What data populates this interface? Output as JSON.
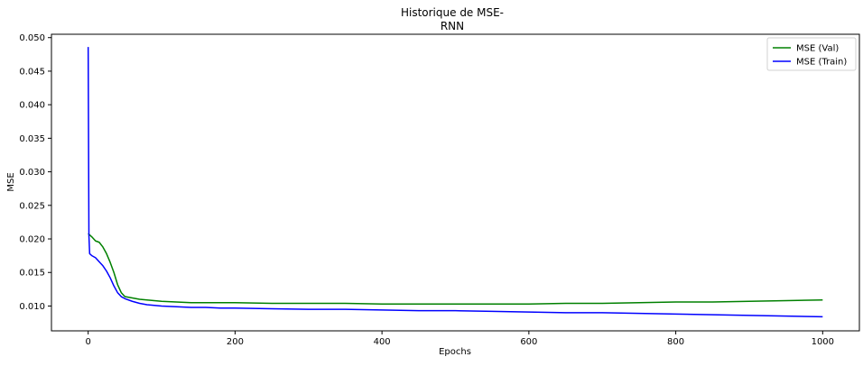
{
  "chart_data": {
    "type": "line",
    "title": "Historique de MSE-\nRNN",
    "xlabel": "Epochs",
    "ylabel": "MSE",
    "xlim": [
      -50,
      1050
    ],
    "ylim": [
      0.0063,
      0.0505
    ],
    "xticks": [
      0,
      200,
      400,
      600,
      800,
      1000
    ],
    "yticks": [
      0.01,
      0.015,
      0.02,
      0.025,
      0.03,
      0.035,
      0.04,
      0.045,
      0.05
    ],
    "ytick_labels": [
      "0.010",
      "0.015",
      "0.020",
      "0.025",
      "0.030",
      "0.035",
      "0.040",
      "0.045",
      "0.050"
    ],
    "grid": false,
    "legend": "top-right",
    "series": [
      {
        "name": "MSE (Val)",
        "color": "#008000",
        "x": [
          0,
          5,
          10,
          15,
          20,
          25,
          30,
          35,
          40,
          45,
          50,
          60,
          70,
          80,
          90,
          100,
          120,
          140,
          160,
          180,
          200,
          250,
          300,
          350,
          400,
          450,
          500,
          550,
          600,
          650,
          700,
          750,
          800,
          850,
          900,
          950,
          1000
        ],
        "y": [
          0.0208,
          0.0203,
          0.0197,
          0.0195,
          0.0188,
          0.0178,
          0.0165,
          0.015,
          0.0132,
          0.012,
          0.0114,
          0.0112,
          0.011,
          0.0109,
          0.0108,
          0.0107,
          0.0106,
          0.0105,
          0.0105,
          0.0105,
          0.0105,
          0.0104,
          0.0104,
          0.0104,
          0.0103,
          0.0103,
          0.0103,
          0.0103,
          0.0103,
          0.0104,
          0.0104,
          0.0105,
          0.0106,
          0.0106,
          0.0107,
          0.0108,
          0.0109
        ]
      },
      {
        "name": "MSE (Train)",
        "color": "#0000ff",
        "x": [
          0,
          1,
          2,
          5,
          10,
          15,
          20,
          25,
          30,
          35,
          40,
          45,
          50,
          60,
          70,
          80,
          90,
          100,
          120,
          140,
          160,
          180,
          200,
          250,
          300,
          350,
          400,
          450,
          500,
          550,
          600,
          650,
          700,
          750,
          800,
          850,
          900,
          950,
          1000
        ],
        "y": [
          0.0486,
          0.0205,
          0.0178,
          0.0175,
          0.0172,
          0.0166,
          0.016,
          0.0152,
          0.0142,
          0.013,
          0.012,
          0.0114,
          0.0111,
          0.0107,
          0.0104,
          0.0102,
          0.0101,
          0.01,
          0.0099,
          0.0098,
          0.0098,
          0.0097,
          0.0097,
          0.0096,
          0.0095,
          0.0095,
          0.0094,
          0.0093,
          0.0093,
          0.0092,
          0.0091,
          0.009,
          0.009,
          0.0089,
          0.0088,
          0.0087,
          0.0086,
          0.0085,
          0.0084
        ]
      }
    ]
  }
}
